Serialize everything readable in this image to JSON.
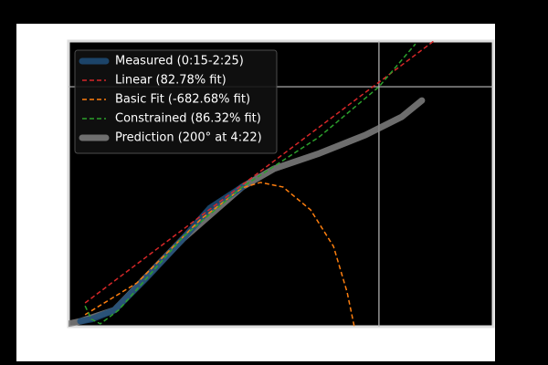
{
  "chart_data": {
    "type": "line",
    "xlim": [
      0,
      100
    ],
    "ylim": [
      0,
      100
    ],
    "vline": 73.1,
    "hline": 84.0,
    "legend": "upper left",
    "series": [
      {
        "name": "Measured (0:15-2:25)",
        "color": "#1f4e79",
        "style": "thick",
        "x": [
          2.8,
          5.4,
          10.8,
          18.3,
          26.9,
          33.3,
          40.9
        ],
        "values": [
          1.9,
          2.6,
          5.8,
          17.0,
          30.7,
          41.5,
          48.9
        ]
      },
      {
        "name": "Linear (82.78% fit)",
        "color": "#d62728",
        "style": "dashed",
        "x": [
          3.9,
          86.0
        ],
        "values": [
          8.3,
          100
        ]
      },
      {
        "name": "Basic Fit (-682.68% fit)",
        "color": "#ff7f0e",
        "style": "dashed",
        "x": [
          3.9,
          16.1,
          31.2,
          40.9,
          45.2,
          50.5,
          57.0,
          62.4,
          65.6,
          67.3
        ],
        "values": [
          4.2,
          15.3,
          37.7,
          48.6,
          50.5,
          48.9,
          40.9,
          28.1,
          12.1,
          0
        ]
      },
      {
        "name": "Constrained (86.32% fit)",
        "color": "#2ca02c",
        "style": "dashed",
        "x": [
          3.9,
          5.4,
          7.5,
          11.8,
          26.9,
          40.9,
          59.1,
          73.1,
          81.7
        ],
        "values": [
          7.3,
          2.6,
          1.0,
          5.8,
          31.3,
          48.9,
          66.5,
          84.0,
          99.0
        ]
      },
      {
        "name": "Prediction (200° at 4:22)",
        "color": "#808080",
        "style": "thick",
        "x": [
          0,
          2.8,
          10.8,
          26.9,
          40.9,
          48.4,
          59.1,
          69.9,
          78.5,
          83.2
        ],
        "values": [
          1.0,
          1.9,
          5.8,
          30.7,
          48.9,
          55.3,
          60.7,
          67.1,
          73.5,
          79.2
        ]
      }
    ]
  }
}
